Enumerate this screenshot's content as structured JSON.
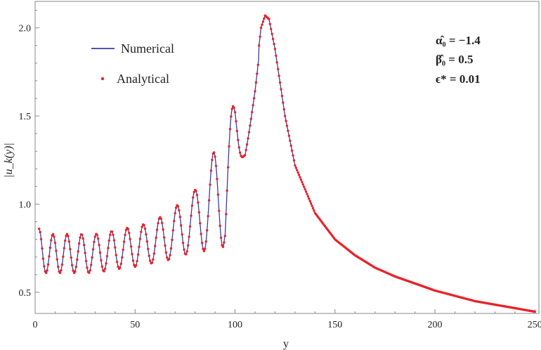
{
  "chart_data": {
    "type": "line",
    "xlabel": "y",
    "ylabel": "|u_k(y)|",
    "xlim": [
      0,
      252
    ],
    "ylim": [
      0.38,
      2.15
    ],
    "x_ticks": [
      0,
      50,
      100,
      150,
      200,
      250
    ],
    "y_ticks": [
      0.5,
      1.0,
      1.5,
      2.0
    ],
    "x_tick_labels": [
      "0",
      "50",
      "100",
      "150",
      "200",
      "250"
    ],
    "y_tick_labels": [
      "0.5",
      "1.0",
      "1.5",
      "2.0"
    ],
    "grid": false,
    "frame": true,
    "legend_position": "top-left",
    "colors": {
      "numerical": "#3b3e9e",
      "analytical": "#e8232a",
      "axes": "#888888"
    },
    "series": [
      {
        "name": "Numerical",
        "style": "line",
        "x": [
          2,
          4,
          6,
          8,
          10,
          12,
          14,
          16,
          18,
          20,
          25,
          30,
          35,
          40,
          45,
          50,
          55,
          60,
          65,
          70,
          75,
          80,
          85,
          90,
          95,
          100,
          105,
          110,
          113,
          115,
          117,
          120,
          125,
          130,
          140,
          150,
          160,
          170,
          180,
          190,
          200,
          210,
          220,
          230,
          240,
          250
        ],
        "y": [
          0.75,
          0.72,
          0.72,
          0.72,
          0.72,
          0.72,
          0.72,
          0.72,
          0.72,
          0.72,
          0.72,
          0.72,
          0.73,
          0.74,
          0.75,
          0.76,
          0.77,
          0.79,
          0.81,
          0.84,
          0.87,
          0.91,
          0.96,
          1.03,
          1.1,
          1.28,
          1.3,
          1.7,
          2.0,
          2.07,
          2.05,
          1.88,
          1.5,
          1.22,
          0.95,
          0.8,
          0.71,
          0.64,
          0.59,
          0.55,
          0.51,
          0.48,
          0.45,
          0.43,
          0.41,
          0.39
        ],
        "oscillation": {
          "x_end": 105,
          "amplitude": [
            [
              2,
              0.11
            ],
            [
              20,
              0.11
            ],
            [
              40,
              0.11
            ],
            [
              60,
              0.12
            ],
            [
              80,
              0.17
            ],
            [
              95,
              0.34
            ],
            [
              105,
              0.0
            ]
          ],
          "frequency_start": 0.92,
          "frequency_end": 0.62
        }
      },
      {
        "name": "Analytical",
        "style": "points",
        "x_range": [
          2,
          250
        ],
        "step": 0.5,
        "matches_series": "Numerical"
      }
    ],
    "annotations": [
      "α̂₀ = −1.4",
      "β̂₀ = 0.5",
      "ϵ* = 0.01"
    ]
  }
}
